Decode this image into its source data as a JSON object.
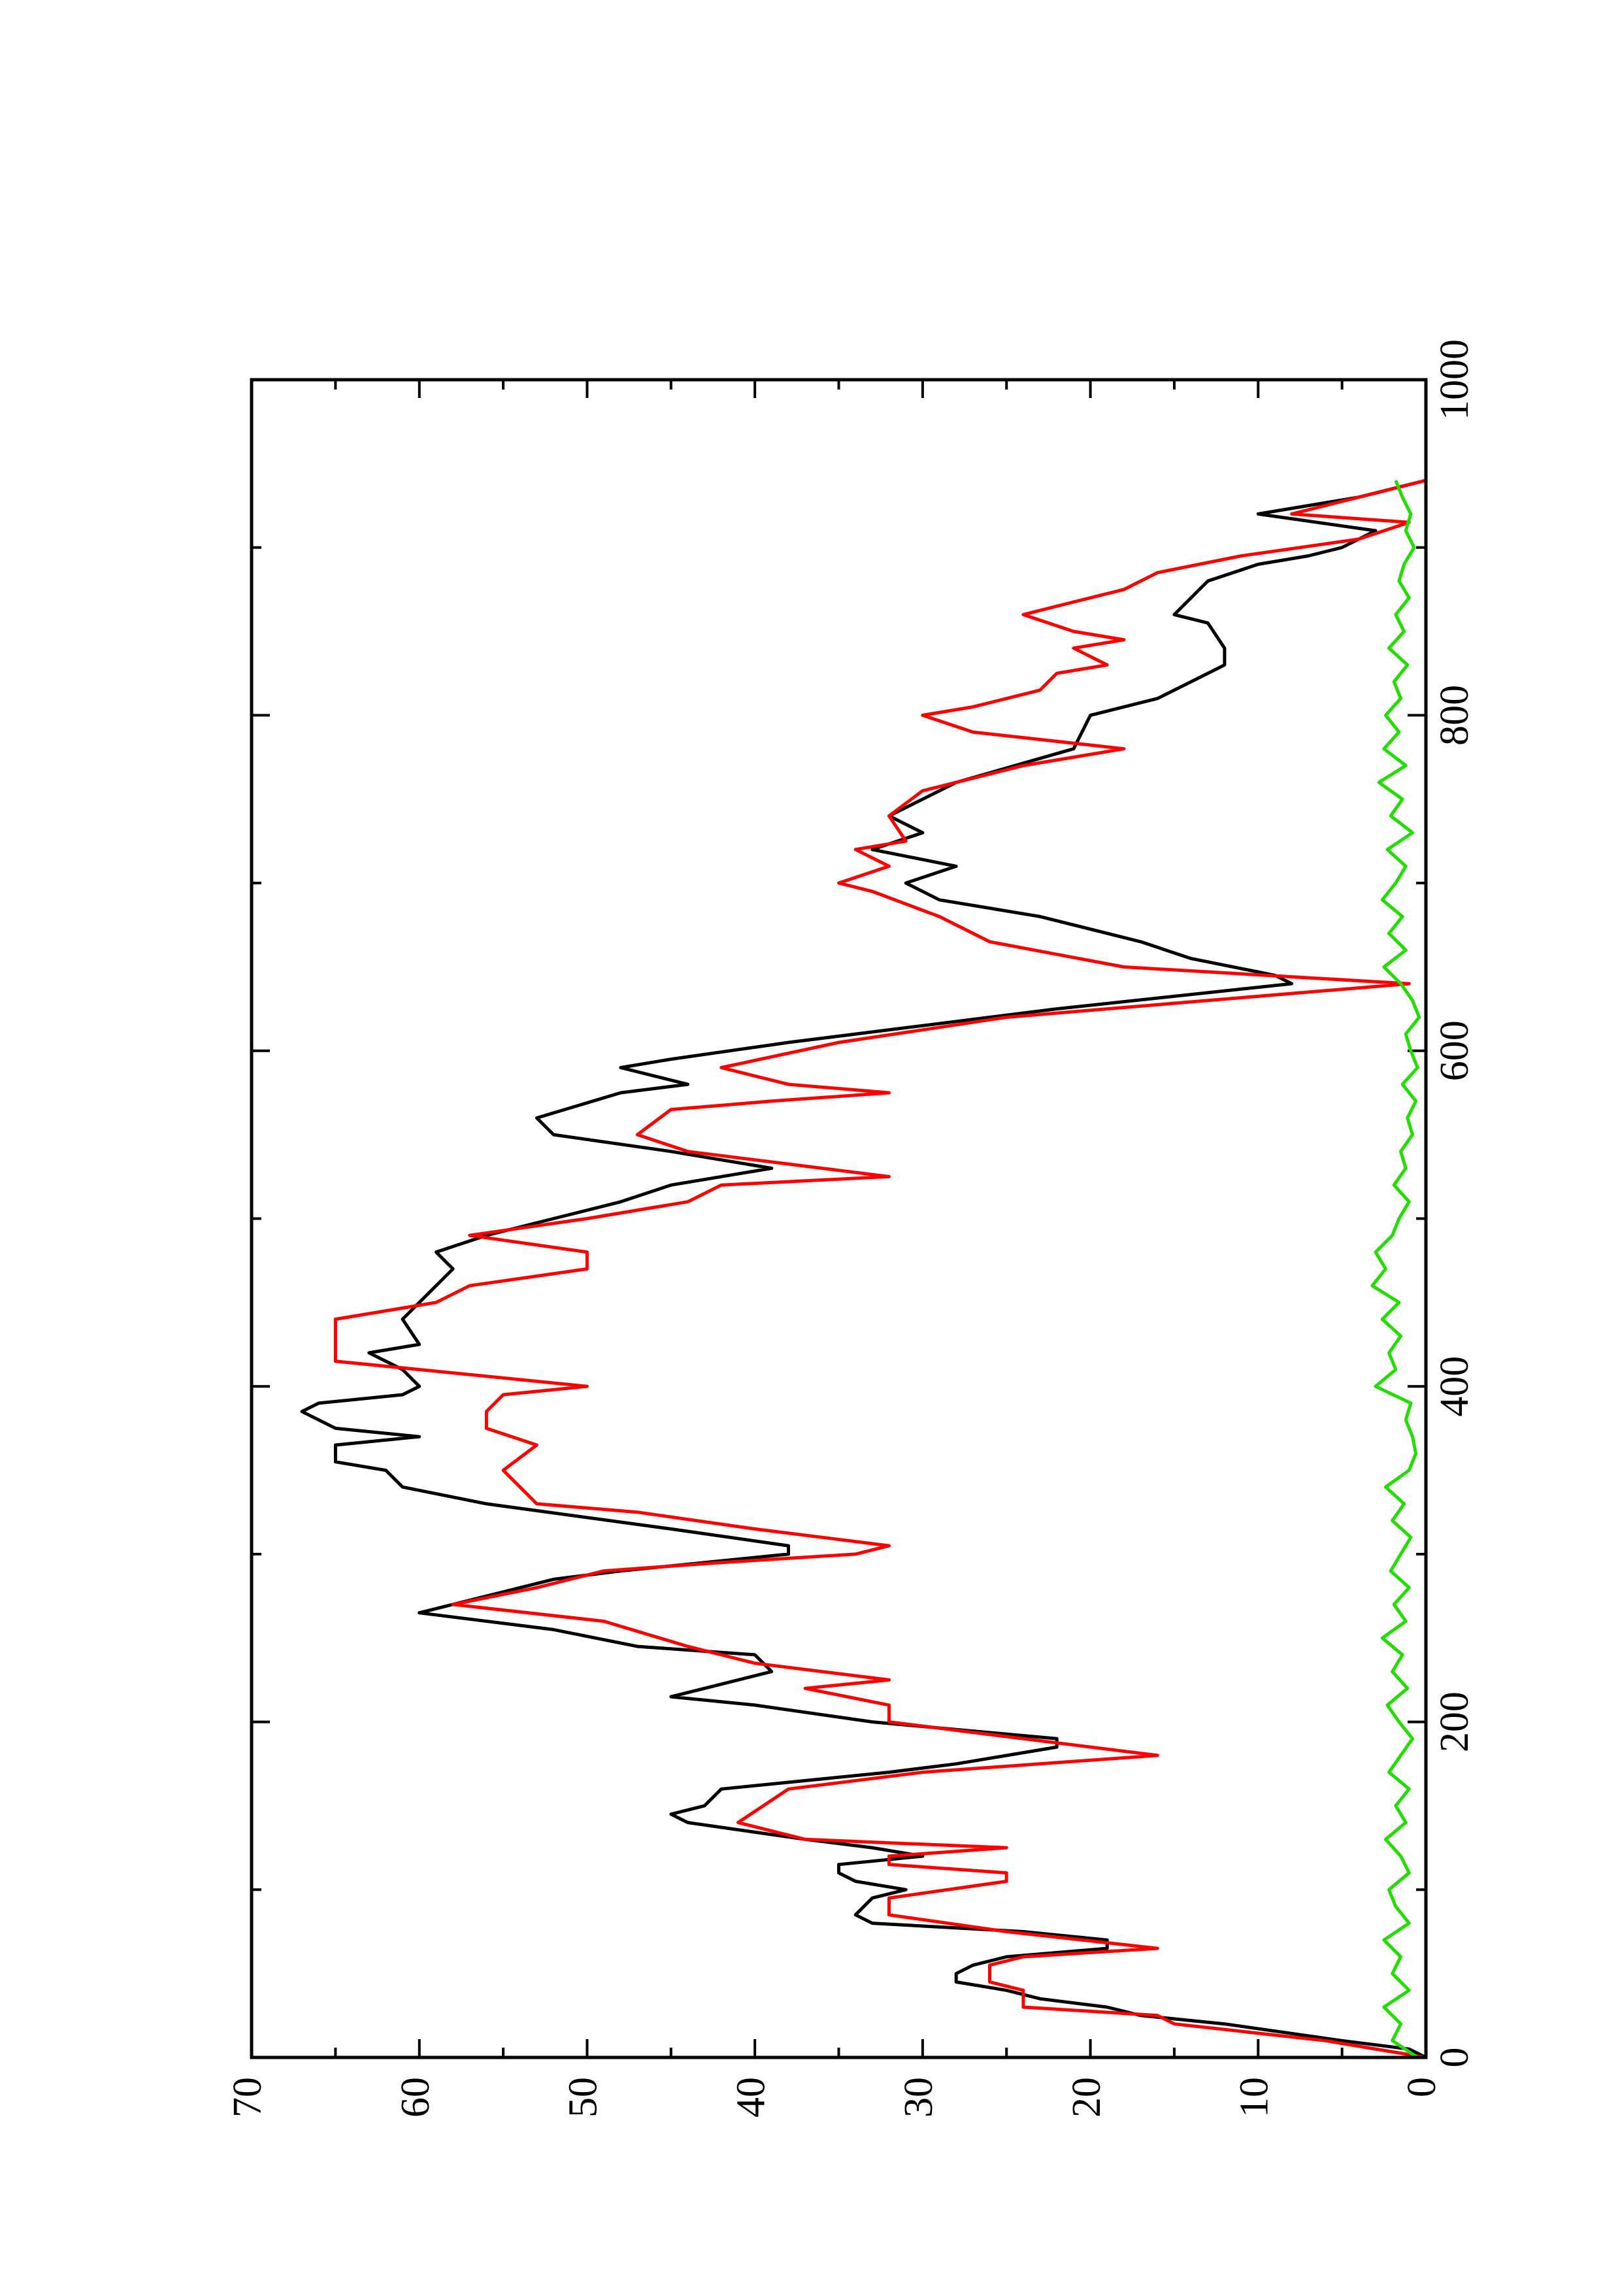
{
  "chart_data": {
    "type": "line",
    "xlim": [
      0,
      1000
    ],
    "xticks": [
      0,
      200,
      400,
      600,
      800,
      1000
    ],
    "ylim": [
      0,
      70
    ],
    "yticks": [
      0,
      10,
      20,
      30,
      40,
      50,
      60,
      70
    ],
    "series": [
      {
        "color": "#000000",
        "x": [
          0,
          5,
          10,
          20,
          25,
          30,
          35,
          40,
          45,
          50,
          55,
          60,
          65,
          70,
          75,
          80,
          85,
          95,
          100,
          105,
          110,
          115,
          120,
          125,
          130,
          140,
          145,
          150,
          160,
          170,
          175,
          185,
          190,
          200,
          210,
          215,
          220,
          230,
          240,
          245,
          255,
          265,
          275,
          285,
          290,
          300,
          305,
          315,
          330,
          340,
          350,
          355,
          365,
          370,
          375,
          385,
          390,
          395,
          400,
          410,
          420,
          425,
          440,
          450,
          470,
          480,
          490,
          500,
          510,
          520,
          530,
          540,
          550,
          560,
          575,
          580,
          590,
          595,
          605,
          615,
          625,
          640,
          645,
          655,
          665,
          680,
          690,
          700,
          710,
          720,
          730,
          740,
          760,
          780,
          800,
          810,
          820,
          830,
          840,
          855,
          860,
          880,
          890,
          895,
          900,
          910,
          920,
          930,
          940
        ],
        "values": [
          0,
          1,
          5,
          12,
          17,
          19,
          23,
          25,
          28,
          28,
          27,
          25,
          19,
          19,
          24,
          33,
          34,
          33,
          31,
          34,
          35,
          35,
          30,
          33,
          37,
          44,
          45,
          43,
          42,
          32,
          28,
          22,
          22,
          33,
          40,
          45,
          43,
          39,
          40,
          47,
          52,
          60,
          56,
          52,
          48,
          38,
          38,
          45,
          56,
          61,
          62,
          65,
          65,
          60,
          65,
          67,
          66,
          61,
          60,
          61,
          63,
          60,
          61,
          60,
          58,
          59,
          56,
          52,
          48,
          45,
          39,
          45,
          52,
          53,
          48,
          44,
          48,
          45,
          38,
          30,
          22,
          8,
          9,
          14,
          17,
          23,
          29,
          31,
          28,
          33,
          30,
          32,
          28,
          21,
          20,
          16,
          14,
          12,
          12,
          13,
          15,
          13,
          10,
          7,
          5,
          3,
          10,
          4,
          0
        ]
      },
      {
        "color": "#ff0000",
        "x": [
          0,
          10,
          20,
          25,
          30,
          40,
          45,
          55,
          60,
          65,
          75,
          85,
          95,
          105,
          110,
          115,
          120,
          125,
          130,
          140,
          160,
          170,
          180,
          190,
          200,
          210,
          220,
          225,
          235,
          245,
          260,
          270,
          280,
          290,
          295,
          300,
          305,
          315,
          325,
          330,
          340,
          350,
          365,
          375,
          385,
          395,
          400,
          410,
          415,
          440,
          450,
          460,
          470,
          480,
          490,
          500,
          510,
          520,
          525,
          540,
          550,
          565,
          570,
          575,
          580,
          590,
          605,
          620,
          640,
          650,
          665,
          680,
          695,
          700,
          710,
          720,
          725,
          740,
          755,
          770,
          780,
          790,
          800,
          805,
          815,
          825,
          830,
          840,
          845,
          850,
          860,
          865,
          875,
          885,
          895,
          905,
          915,
          920,
          935,
          940
        ],
        "values": [
          0,
          6,
          15,
          16,
          24,
          24,
          26,
          26,
          24,
          16,
          25,
          32,
          32,
          25,
          25,
          32,
          32,
          25,
          37,
          41,
          38,
          30,
          16,
          24,
          32,
          32,
          37,
          32,
          40,
          44,
          49,
          58,
          53,
          49,
          42,
          34,
          32,
          40,
          47,
          53,
          54,
          55,
          53,
          56,
          56,
          55,
          50,
          60,
          65,
          65,
          59,
          57,
          50,
          50,
          57,
          50,
          44,
          42,
          32,
          44,
          47,
          45,
          39,
          32,
          38,
          42,
          35,
          25,
          1,
          18,
          26,
          29,
          33,
          35,
          32,
          34,
          31,
          32,
          30,
          24,
          18,
          27,
          30,
          27,
          23,
          22,
          19,
          21,
          18,
          21,
          24,
          22,
          18,
          16,
          11,
          4,
          1,
          8,
          2,
          0
        ]
      },
      {
        "color": "#22dd00",
        "x": [
          0,
          10,
          20,
          30,
          40,
          50,
          60,
          70,
          80,
          90,
          100,
          110,
          120,
          130,
          140,
          150,
          160,
          170,
          180,
          190,
          200,
          210,
          220,
          230,
          240,
          250,
          260,
          270,
          280,
          290,
          300,
          310,
          320,
          330,
          340,
          350,
          360,
          370,
          380,
          390,
          400,
          410,
          420,
          430,
          440,
          450,
          460,
          470,
          480,
          490,
          500,
          510,
          520,
          530,
          540,
          550,
          560,
          570,
          580,
          590,
          600,
          610,
          620,
          630,
          640,
          650,
          660,
          670,
          680,
          690,
          700,
          710,
          720,
          730,
          740,
          750,
          760,
          770,
          780,
          790,
          800,
          810,
          820,
          830,
          840,
          850,
          860,
          870,
          880,
          890,
          900,
          910,
          920,
          930,
          940
        ],
        "values": [
          0.5,
          2,
          1.5,
          2.5,
          1,
          2,
          1.5,
          2.5,
          1,
          1.8,
          2.2,
          1,
          1.5,
          2.4,
          1.2,
          1.8,
          1,
          2.2,
          1.5,
          0.8,
          1.6,
          2.3,
          1.1,
          2,
          1.4,
          2.6,
          1.2,
          1.9,
          1,
          2.1,
          1.5,
          0.9,
          2,
          1.3,
          2.4,
          1,
          0.6,
          0.8,
          1.2,
          0.9,
          3,
          1.8,
          2.2,
          1.5,
          2.6,
          1.6,
          3.2,
          2.4,
          3,
          2,
          1.6,
          1,
          1.9,
          1.2,
          1.5,
          0.8,
          1.1,
          0.6,
          1.4,
          0.5,
          0.9,
          1.2,
          0.4,
          0.8,
          1.5,
          2.5,
          1.2,
          2.2,
          1.4,
          2.6,
          1.8,
          1.2,
          2.3,
          0.8,
          2.1,
          1.4,
          2.8,
          1.2,
          2.5,
          1.6,
          2.4,
          1.5,
          1.9,
          1.1,
          2.2,
          1.3,
          1.8,
          1,
          1.6,
          1.3,
          0.7,
          1.2,
          0.9,
          1.4,
          1.8
        ]
      }
    ]
  }
}
